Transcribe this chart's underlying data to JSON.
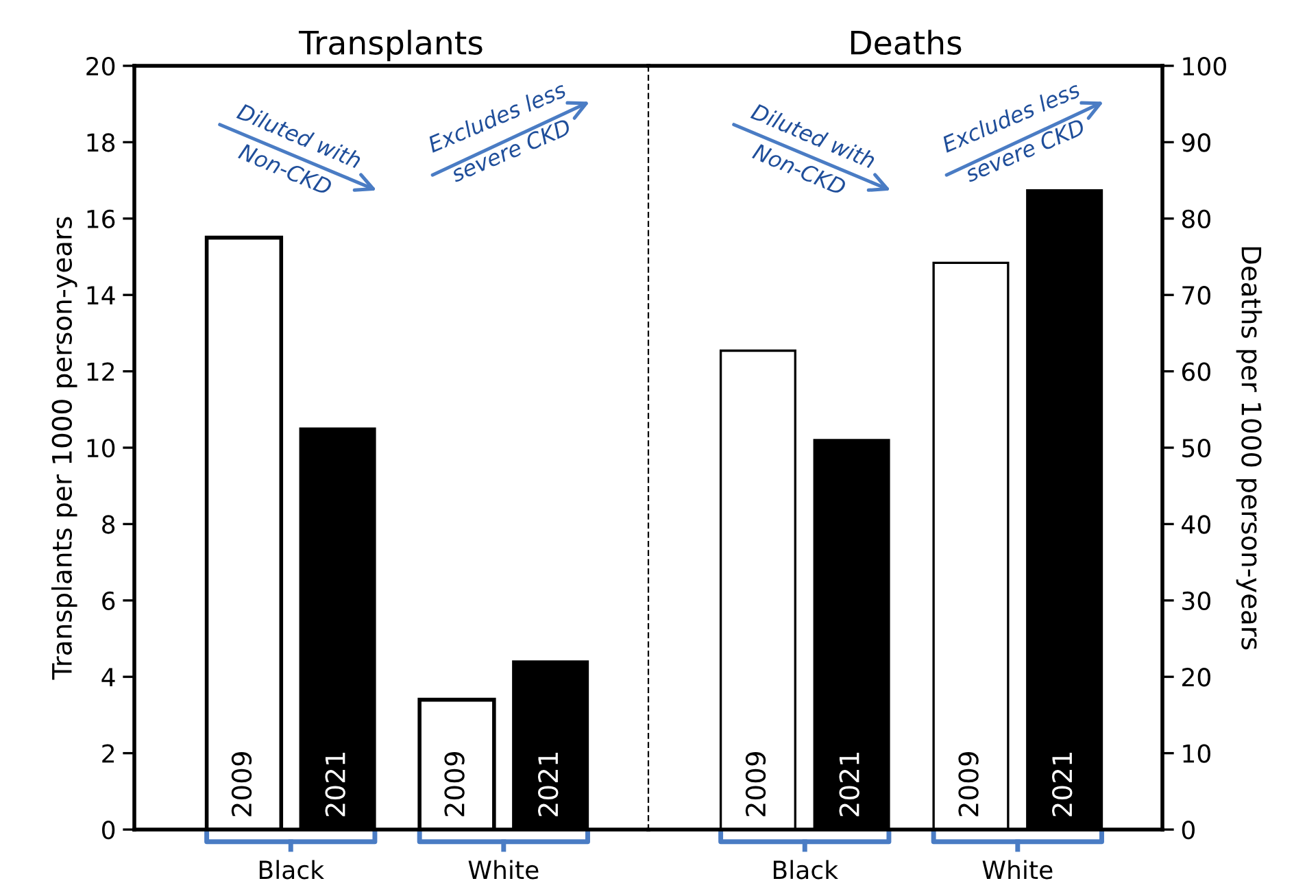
{
  "chart_data": [
    {
      "type": "bar",
      "title": "Transplants",
      "ylabel": "Transplants per 1000 person-years",
      "categories": [
        "Black",
        "White"
      ],
      "series": [
        {
          "name": "2009",
          "color": "#ffffff",
          "values": [
            15.5,
            3.4
          ]
        },
        {
          "name": "2021",
          "color": "#000000",
          "values": [
            10.5,
            4.4
          ]
        }
      ],
      "ylim": [
        0,
        20
      ],
      "yticks": [
        0,
        2,
        4,
        6,
        8,
        10,
        12,
        14,
        16,
        18,
        20
      ],
      "grid": false,
      "legend": false,
      "annotations": [
        "Diluted with\nNon-CKD",
        "Excludes less\nsevere CKD"
      ]
    },
    {
      "type": "bar",
      "title": "Deaths",
      "ylabel": "Deaths per 1000 person-years",
      "categories": [
        "Black",
        "White"
      ],
      "series": [
        {
          "name": "2009",
          "color": "#ffffff",
          "values": [
            62.7,
            74.2
          ]
        },
        {
          "name": "2021",
          "color": "#000000",
          "values": [
            51,
            83.7
          ]
        }
      ],
      "ylim": [
        0,
        100
      ],
      "yticks": [
        0,
        10,
        20,
        30,
        40,
        50,
        60,
        70,
        80,
        90,
        100
      ],
      "grid": false,
      "legend": false,
      "annotations": [
        "Diluted with\nNon-CKD",
        "Excludes less\nsevere CKD"
      ]
    }
  ]
}
